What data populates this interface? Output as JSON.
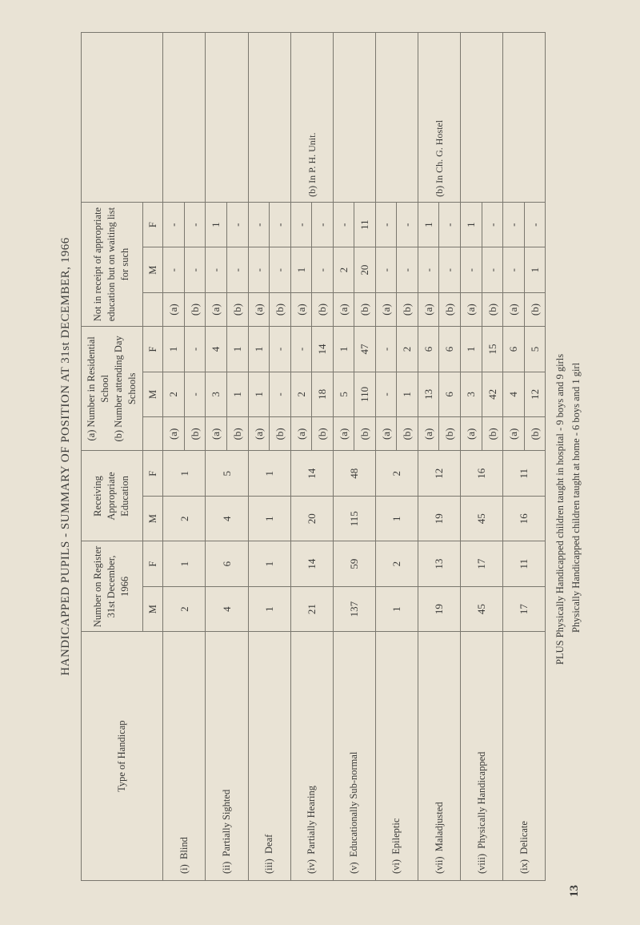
{
  "page_number": "13",
  "title": "HANDICAPPED PUPILS - SUMMARY OF POSITION AT 31st DECEMBER, 1966",
  "columns": {
    "type": "Type of Handicap",
    "register": "Number on Register 31st December, 1966",
    "receiving": "Receiving Appropriate Education",
    "number_in": "(a) Number in Residential School",
    "number_att": "(b) Number attending Day Schools",
    "not_receipt": "Not in receipt of appropriate education but on waiting list for such",
    "m": "M",
    "f": "F",
    "a": "(a)",
    "b": "(b)"
  },
  "rows": [
    {
      "idx": "(i)",
      "name": "Blind",
      "reg_m": "2",
      "reg_f": "1",
      "rec_m": "2",
      "rec_f": "1",
      "a_m": "2",
      "a_f": "1",
      "b_m": "-",
      "b_f": "-",
      "w_a_m": "-",
      "w_a_f": "-",
      "w_b_m": "-",
      "w_b_f": "-",
      "note": ""
    },
    {
      "idx": "(ii)",
      "name": "Partially Sighted",
      "reg_m": "4",
      "reg_f": "6",
      "rec_m": "4",
      "rec_f": "5",
      "a_m": "3",
      "a_f": "4",
      "b_m": "1",
      "b_f": "1",
      "w_a_m": "-",
      "w_a_f": "1",
      "w_b_m": "-",
      "w_b_f": "-",
      "note": ""
    },
    {
      "idx": "(iii)",
      "name": "Deaf",
      "reg_m": "1",
      "reg_f": "1",
      "rec_m": "1",
      "rec_f": "1",
      "a_m": "1",
      "a_f": "1",
      "b_m": "-",
      "b_f": "-",
      "w_a_m": "-",
      "w_a_f": "-",
      "w_b_m": "-",
      "w_b_f": "-",
      "note": ""
    },
    {
      "idx": "(iv)",
      "name": "Partially Hearing",
      "reg_m": "21",
      "reg_f": "14",
      "rec_m": "20",
      "rec_f": "14",
      "a_m": "2",
      "a_f": "-",
      "b_m": "18",
      "b_f": "14",
      "w_a_m": "1",
      "w_a_f": "-",
      "w_b_m": "-",
      "w_b_f": "-",
      "note": "(b) In P. H. Unit."
    },
    {
      "idx": "(v)",
      "name": "Educationally Sub-normal",
      "reg_m": "137",
      "reg_f": "59",
      "rec_m": "115",
      "rec_f": "48",
      "a_m": "5",
      "a_f": "1",
      "b_m": "110",
      "b_f": "47",
      "w_a_m": "2",
      "w_a_f": "-",
      "w_b_m": "20",
      "w_b_f": "11",
      "note": ""
    },
    {
      "idx": "(vi)",
      "name": "Epileptic",
      "reg_m": "1",
      "reg_f": "2",
      "rec_m": "1",
      "rec_f": "2",
      "a_m": "-",
      "a_f": "-",
      "b_m": "1",
      "b_f": "2",
      "w_a_m": "-",
      "w_a_f": "-",
      "w_b_m": "-",
      "w_b_f": "-",
      "note": ""
    },
    {
      "idx": "(vii)",
      "name": "Maladjusted",
      "reg_m": "19",
      "reg_f": "13",
      "rec_m": "19",
      "rec_f": "12",
      "a_m": "13",
      "a_f": "6",
      "b_m": "6",
      "b_f": "6",
      "w_a_m": "-",
      "w_a_f": "1",
      "w_b_m": "-",
      "w_b_f": "-",
      "note": "(b) In Ch. G. Hostel"
    },
    {
      "idx": "(viii)",
      "name": "Physically Handicapped",
      "reg_m": "45",
      "reg_f": "17",
      "rec_m": "45",
      "rec_f": "16",
      "a_m": "3",
      "a_f": "1",
      "b_m": "42",
      "b_f": "15",
      "w_a_m": "-",
      "w_a_f": "1",
      "w_b_m": "-",
      "w_b_f": "-",
      "note": ""
    },
    {
      "idx": "(ix)",
      "name": "Delicate",
      "reg_m": "17",
      "reg_f": "11",
      "rec_m": "16",
      "rec_f": "11",
      "a_m": "4",
      "a_f": "6",
      "b_m": "12",
      "b_f": "5",
      "w_a_m": "-",
      "w_a_f": "-",
      "w_b_m": "1",
      "w_b_f": "-",
      "note": ""
    }
  ],
  "footnote": {
    "line1": "PLUS  Physically Handicapped children taught in hospital   -  9 boys and 9 girls",
    "line2": "Physically Handicapped children taught at home       -  6 boys and 1 girl"
  },
  "background_color": "#e9e3d5",
  "border_color": "#7a776e",
  "text_color": "#3a3a38"
}
